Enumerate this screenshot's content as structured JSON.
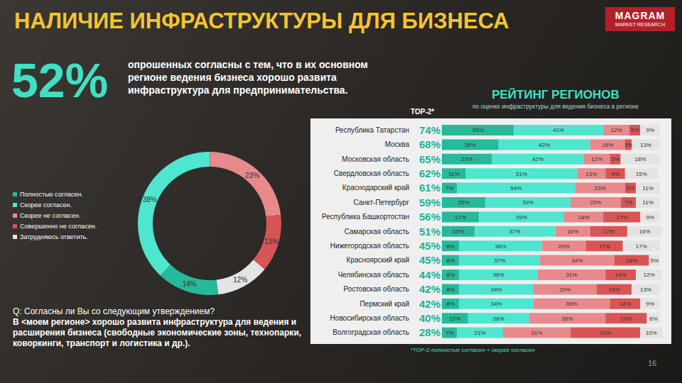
{
  "header": {
    "title": "НАЛИЧИЕ ИНФРАСТРУКТУРЫ ДЛЯ БИЗНЕСА",
    "logo": "MAGRAM",
    "logo_subtitle": "MARKET RESEARCH",
    "page": "16"
  },
  "headline": {
    "value_label": "52%",
    "text": "опрошенных согласны с тем, что в их основном регионе ведения бизнеса хорошо развита инфраструктура для предпринимательства."
  },
  "question": {
    "prefix": "Q: Согласны ли Вы со следующим утверждением?",
    "statement": "В <моем регионе> хорошо развита инфраструктура для ведения и расширения бизнеса (свободные экономические зоны, технопарки, коворкинги, транспорт и логистика и др.)."
  },
  "chart_data": [
    {
      "type": "pie",
      "categories": [
        "Полностью согласен.",
        "Скорее согласен.",
        "Скорее не согласен.",
        "Совершенно не согласен.",
        "Затрудняюсь ответить."
      ],
      "values": [
        14,
        38,
        23,
        13,
        12
      ],
      "value_labels": [
        "14%",
        "38%",
        "23%",
        "13%",
        "12%"
      ],
      "colors": [
        "#26b99a",
        "#4ee6cf",
        "#e8898c",
        "#d95454",
        "#e4e4e4"
      ],
      "legend": "left",
      "data_labels": true
    },
    {
      "type": "bar",
      "title": "РЕЙТИНГ РЕГИОНОВ",
      "subtitle": "по оценке инфраструктуры для ведения бизнеса в регионе",
      "orientation": "horizontal",
      "stacked": true,
      "data_labels": true,
      "tick_labels": "y",
      "categories": [
        "Республика Татарстан",
        "Москва",
        "Московская область",
        "Свердловская область",
        "Краснодарский край",
        "Санкт-Петербург",
        "Республика Башкортостан",
        "Самарская область",
        "Нижегородская область",
        "Красноярский край",
        "Челябинская область",
        "Ростовская область",
        "Пермский край",
        "Новосибирская область",
        "Волгоградская область"
      ],
      "xlim": [
        0,
        101
      ],
      "top2": {
        "label": "TOP-2*",
        "labels": [
          "74%",
          "68%",
          "65%",
          "62%",
          "61%",
          "59%",
          "56%",
          "51%",
          "45%",
          "45%",
          "44%",
          "42%",
          "42%",
          "40%",
          "28%"
        ]
      },
      "footnote": "*TOP-2-полностью согласен + скорее согласен",
      "series": [
        {
          "name": "Полностью согласен.",
          "color": "#26b99a",
          "values": [
            33,
            26,
            23,
            11,
            7,
            20,
            17,
            15,
            8,
            8,
            8,
            8,
            8,
            12,
            7
          ],
          "value_labels": [
            "33%",
            "26%",
            "23%",
            "11%",
            "7%",
            "20%",
            "17%",
            "15%",
            "8%",
            "8%",
            "8%",
            "8%",
            "8%",
            "12%",
            "7%"
          ]
        },
        {
          "name": "Скорее согласен.",
          "color": "#4ee6cf",
          "values": [
            41,
            42,
            42,
            51,
            54,
            39,
            39,
            37,
            38,
            37,
            36,
            34,
            34,
            28,
            21
          ],
          "value_labels": [
            "41%",
            "42%",
            "42%",
            "51%",
            "54%",
            "39%",
            "39%",
            "37%",
            "38%",
            "37%",
            "36%",
            "34%",
            "34%",
            "28%",
            "21%"
          ]
        },
        {
          "name": "Скорее не согласен.",
          "color": "#e8898c",
          "values": [
            12,
            16,
            12,
            13,
            23,
            23,
            18,
            16,
            20,
            34,
            31,
            29,
            35,
            35,
            31
          ],
          "value_labels": [
            "12%",
            "16%",
            "12%",
            "13%",
            "23%",
            "23%",
            "18%",
            "16%",
            "20%",
            "34%",
            "31%",
            "29%",
            "35%",
            "35%",
            "31%"
          ]
        },
        {
          "name": "Совершенно не согласен.",
          "color": "#d95454",
          "values": [
            5,
            3,
            5,
            9,
            5,
            7,
            17,
            17,
            17,
            16,
            14,
            16,
            14,
            19,
            32
          ],
          "value_labels": [
            "5%",
            "3%",
            "5%",
            "9%",
            "5%",
            "7%",
            "17%",
            "17%",
            "17%",
            "16%",
            "14%",
            "16%",
            "14%",
            "19%",
            "32%"
          ]
        },
        {
          "name": "Затрудняюсь ответить.",
          "color": "#e4e4e4",
          "values": [
            9,
            13,
            18,
            15,
            11,
            11,
            9,
            16,
            17,
            5,
            12,
            13,
            9,
            6,
            10
          ],
          "value_labels": [
            "9%",
            "13%",
            "18%",
            "15%",
            "11%",
            "11%",
            "9%",
            "16%",
            "17%",
            "5%",
            "12%",
            "13%",
            "9%",
            "6%",
            "10%"
          ]
        }
      ]
    }
  ]
}
